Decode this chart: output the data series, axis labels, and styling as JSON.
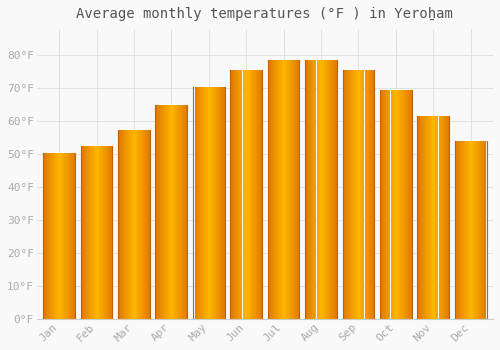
{
  "title": "Average monthly temperatures (°F ) in Yeroẖam",
  "months": [
    "Jan",
    "Feb",
    "Mar",
    "Apr",
    "May",
    "Jun",
    "Jul",
    "Aug",
    "Sep",
    "Oct",
    "Nov",
    "Dec"
  ],
  "values": [
    50.5,
    52.5,
    57.5,
    65.0,
    70.5,
    75.5,
    78.5,
    78.5,
    75.5,
    69.5,
    61.5,
    54.0
  ],
  "bar_color_center": "#FFB700",
  "bar_color_edge": "#E07800",
  "background_color": "#f9f9f9",
  "plot_bg_color": "#f9f9f9",
  "grid_color": "#dddddd",
  "ylim": [
    0,
    88
  ],
  "yticks": [
    0,
    10,
    20,
    30,
    40,
    50,
    60,
    70,
    80
  ],
  "ytick_labels": [
    "0°F",
    "10°F",
    "20°F",
    "30°F",
    "40°F",
    "50°F",
    "60°F",
    "70°F",
    "80°F"
  ],
  "title_fontsize": 10,
  "tick_fontsize": 8,
  "tick_color": "#aaaaaa",
  "spine_color": "#cccccc",
  "bar_width": 0.85
}
